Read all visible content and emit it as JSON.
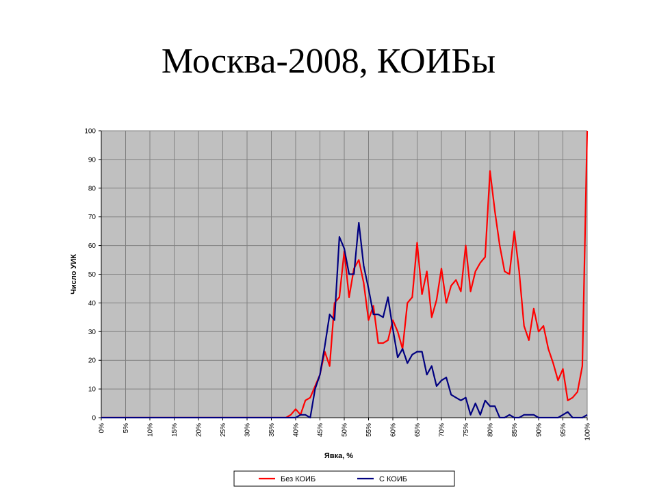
{
  "slide": {
    "title": "Москва-2008, КОИБы"
  },
  "chart_data": {
    "type": "line",
    "title": "",
    "xlabel": "Явка, %",
    "ylabel": "Число УИК",
    "xlim": [
      0,
      100
    ],
    "ylim": [
      0,
      100
    ],
    "grid": true,
    "background": "#c0c0c0",
    "legend_position": "bottom",
    "x_ticks": [
      "0%",
      "5%",
      "10%",
      "15%",
      "20%",
      "25%",
      "30%",
      "35%",
      "40%",
      "45%",
      "50%",
      "55%",
      "60%",
      "65%",
      "70%",
      "75%",
      "80%",
      "85%",
      "90%",
      "95%",
      "100%"
    ],
    "y_ticks": [
      "0",
      "10",
      "20",
      "30",
      "40",
      "50",
      "60",
      "70",
      "80",
      "90",
      "100"
    ],
    "series": [
      {
        "name": "Без КОИБ",
        "color": "#ff0000",
        "x": [
          0,
          1,
          2,
          3,
          4,
          5,
          6,
          7,
          8,
          9,
          10,
          11,
          12,
          13,
          14,
          15,
          16,
          17,
          18,
          19,
          20,
          21,
          22,
          23,
          24,
          25,
          26,
          27,
          28,
          29,
          30,
          31,
          32,
          33,
          34,
          35,
          36,
          37,
          38,
          39,
          40,
          41,
          42,
          43,
          44,
          45,
          46,
          47,
          48,
          49,
          50,
          51,
          52,
          53,
          54,
          55,
          56,
          57,
          58,
          59,
          60,
          61,
          62,
          63,
          64,
          65,
          66,
          67,
          68,
          69,
          70,
          71,
          72,
          73,
          74,
          75,
          76,
          77,
          78,
          79,
          80,
          81,
          82,
          83,
          84,
          85,
          86,
          87,
          88,
          89,
          90,
          91,
          92,
          93,
          94,
          95,
          96,
          97,
          98,
          99,
          100
        ],
        "y": [
          0,
          0,
          0,
          0,
          0,
          0,
          0,
          0,
          0,
          0,
          0,
          0,
          0,
          0,
          0,
          0,
          0,
          0,
          0,
          0,
          0,
          0,
          0,
          0,
          0,
          0,
          0,
          0,
          0,
          0,
          0,
          0,
          0,
          0,
          0,
          0,
          0,
          0,
          0,
          1,
          3,
          1,
          6,
          7,
          11,
          15,
          23,
          18,
          40,
          42,
          58,
          42,
          52,
          55,
          47,
          34,
          39,
          26,
          26,
          27,
          34,
          30,
          24,
          40,
          42,
          61,
          43,
          51,
          35,
          41,
          52,
          40,
          46,
          48,
          44,
          60,
          44,
          51,
          54,
          56,
          86,
          72,
          60,
          51,
          50,
          65,
          51,
          32,
          27,
          38,
          30,
          32,
          24,
          19,
          13,
          17,
          6,
          7,
          9,
          18,
          100
        ]
      },
      {
        "name": "С КОИБ",
        "color": "#000080",
        "x": [
          0,
          1,
          2,
          3,
          4,
          5,
          6,
          7,
          8,
          9,
          10,
          11,
          12,
          13,
          14,
          15,
          16,
          17,
          18,
          19,
          20,
          21,
          22,
          23,
          24,
          25,
          26,
          27,
          28,
          29,
          30,
          31,
          32,
          33,
          34,
          35,
          36,
          37,
          38,
          39,
          40,
          41,
          42,
          43,
          44,
          45,
          46,
          47,
          48,
          49,
          50,
          51,
          52,
          53,
          54,
          55,
          56,
          57,
          58,
          59,
          60,
          61,
          62,
          63,
          64,
          65,
          66,
          67,
          68,
          69,
          70,
          71,
          72,
          73,
          74,
          75,
          76,
          77,
          78,
          79,
          80,
          81,
          82,
          83,
          84,
          85,
          86,
          87,
          88,
          89,
          90,
          91,
          92,
          93,
          94,
          95,
          96,
          97,
          98,
          99,
          100
        ],
        "y": [
          0,
          0,
          0,
          0,
          0,
          0,
          0,
          0,
          0,
          0,
          0,
          0,
          0,
          0,
          0,
          0,
          0,
          0,
          0,
          0,
          0,
          0,
          0,
          0,
          0,
          0,
          0,
          0,
          0,
          0,
          0,
          0,
          0,
          0,
          0,
          0,
          0,
          0,
          0,
          0,
          0,
          1,
          1,
          0,
          10,
          15,
          25,
          36,
          34,
          63,
          59,
          50,
          50,
          68,
          53,
          45,
          36,
          36,
          35,
          42,
          31,
          21,
          24,
          19,
          22,
          23,
          23,
          15,
          18,
          11,
          13,
          14,
          8,
          7,
          6,
          7,
          1,
          5,
          1,
          6,
          4,
          4,
          0,
          0,
          1,
          0,
          0,
          1,
          1,
          1,
          0,
          0,
          0,
          0,
          0,
          1,
          2,
          0,
          0,
          0,
          1
        ]
      }
    ]
  }
}
